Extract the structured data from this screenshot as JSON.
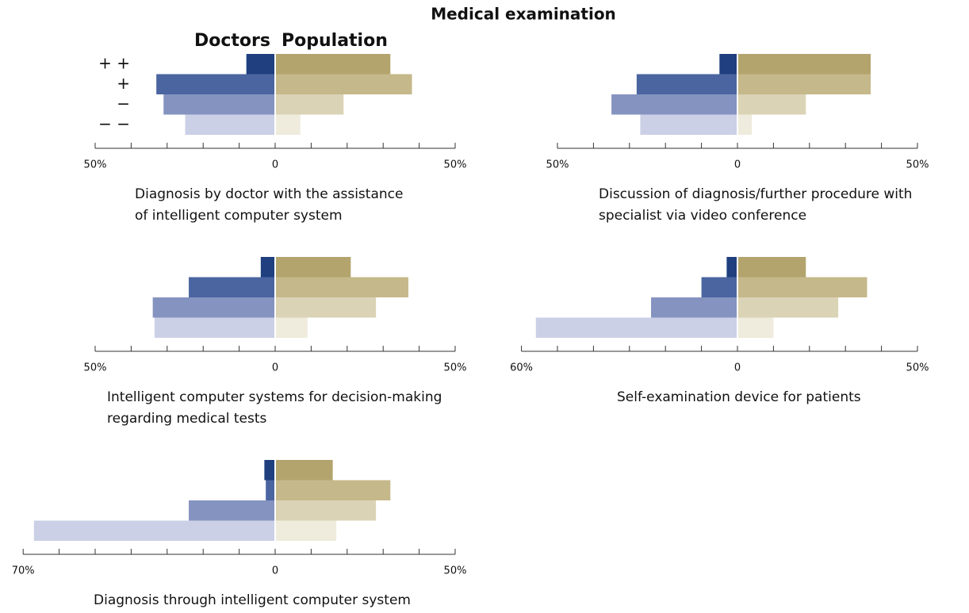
{
  "title": "Medical examination",
  "chart_data": [
    {
      "type": "butterfly",
      "categories": [
        "+ +",
        "+",
        "−",
        "− −"
      ],
      "caption": [
        "Diagnosis by doctor with the assistance",
        "of intelligent computer system"
      ],
      "series": [
        {
          "name": "Doctors",
          "side": "left",
          "colors": [
            "#1f3f7f",
            "#4a65a0",
            "#8593c0",
            "#cbd0e6"
          ],
          "values": [
            8,
            33,
            31,
            25
          ]
        },
        {
          "name": "Population",
          "side": "right",
          "colors": [
            "#b3a46e",
            "#c5b88a",
            "#dbd3b6",
            "#efebdd"
          ],
          "values": [
            32,
            38,
            19,
            7
          ]
        }
      ],
      "xlim": [
        -50,
        50
      ],
      "xticks": [
        {
          "value": -50,
          "label": "50%"
        },
        0,
        {
          "value": 50,
          "label": "50%"
        }
      ],
      "minor_xticks": [
        -40,
        -30,
        -20,
        -10,
        10,
        20,
        30,
        40
      ]
    },
    {
      "type": "butterfly",
      "caption": [
        "Discussion of diagnosis/further procedure with",
        "specialist via video conference"
      ],
      "series": [
        {
          "side": "left",
          "colors": [
            "#1f3f7f",
            "#4a65a0",
            "#8593c0",
            "#cbd0e6"
          ],
          "values": [
            5,
            28,
            35,
            27
          ]
        },
        {
          "side": "right",
          "colors": [
            "#b3a46e",
            "#c5b88a",
            "#dbd3b6",
            "#efebdd"
          ],
          "values": [
            37,
            37,
            19,
            4
          ]
        }
      ],
      "xlim": [
        -50,
        50
      ],
      "xticks": [
        {
          "value": -50,
          "label": "50%"
        },
        0,
        {
          "value": 50,
          "label": "50%"
        }
      ],
      "minor_xticks": [
        -40,
        -30,
        -20,
        -10,
        10,
        20,
        30,
        40
      ]
    },
    {
      "type": "butterfly",
      "caption": [
        "Intelligent computer systems for decision-making",
        "regarding medical tests"
      ],
      "series": [
        {
          "side": "left",
          "colors": [
            "#1f3f7f",
            "#4a65a0",
            "#8593c0",
            "#cbd0e6"
          ],
          "values": [
            4,
            24,
            34,
            33.5
          ]
        },
        {
          "side": "right",
          "colors": [
            "#b3a46e",
            "#c5b88a",
            "#dbd3b6",
            "#efebdd"
          ],
          "values": [
            21,
            37,
            28,
            9
          ]
        }
      ],
      "xlim": [
        -50,
        50
      ],
      "xticks": [
        {
          "value": -50,
          "label": "50%"
        },
        0,
        {
          "value": 50,
          "label": "50%"
        }
      ],
      "minor_xticks": [
        -40,
        -30,
        -20,
        -10,
        10,
        20,
        30,
        40
      ]
    },
    {
      "type": "butterfly",
      "caption": [
        "Self-examination device for patients"
      ],
      "series": [
        {
          "side": "left",
          "colors": [
            "#1f3f7f",
            "#4a65a0",
            "#8593c0",
            "#cbd0e6"
          ],
          "values": [
            3,
            10,
            24,
            56
          ]
        },
        {
          "side": "right",
          "colors": [
            "#b3a46e",
            "#c5b88a",
            "#dbd3b6",
            "#efebdd"
          ],
          "values": [
            19,
            36,
            28,
            10
          ]
        }
      ],
      "xlim": [
        -60,
        50
      ],
      "xticks": [
        {
          "value": -60,
          "label": "60%"
        },
        0,
        {
          "value": 50,
          "label": "50%"
        }
      ],
      "minor_xticks": [
        -50,
        -40,
        -30,
        -20,
        -10,
        10,
        20,
        30,
        40
      ]
    },
    {
      "type": "butterfly",
      "caption": [
        "Diagnosis through intelligent computer system"
      ],
      "series": [
        {
          "side": "left",
          "colors": [
            "#1f3f7f",
            "#4a65a0",
            "#8593c0",
            "#cbd0e6"
          ],
          "values": [
            3,
            2.6,
            24,
            67
          ]
        },
        {
          "side": "right",
          "colors": [
            "#b3a46e",
            "#c5b88a",
            "#dbd3b6",
            "#efebdd"
          ],
          "values": [
            16,
            32,
            28,
            17
          ]
        }
      ],
      "xlim": [
        -70,
        50
      ],
      "xticks": [
        {
          "value": -70,
          "label": "70%"
        },
        0,
        {
          "value": 50,
          "label": "50%"
        }
      ],
      "minor_xticks": [
        -60,
        -50,
        -40,
        -30,
        -20,
        -10,
        10,
        20,
        30,
        40
      ]
    }
  ]
}
